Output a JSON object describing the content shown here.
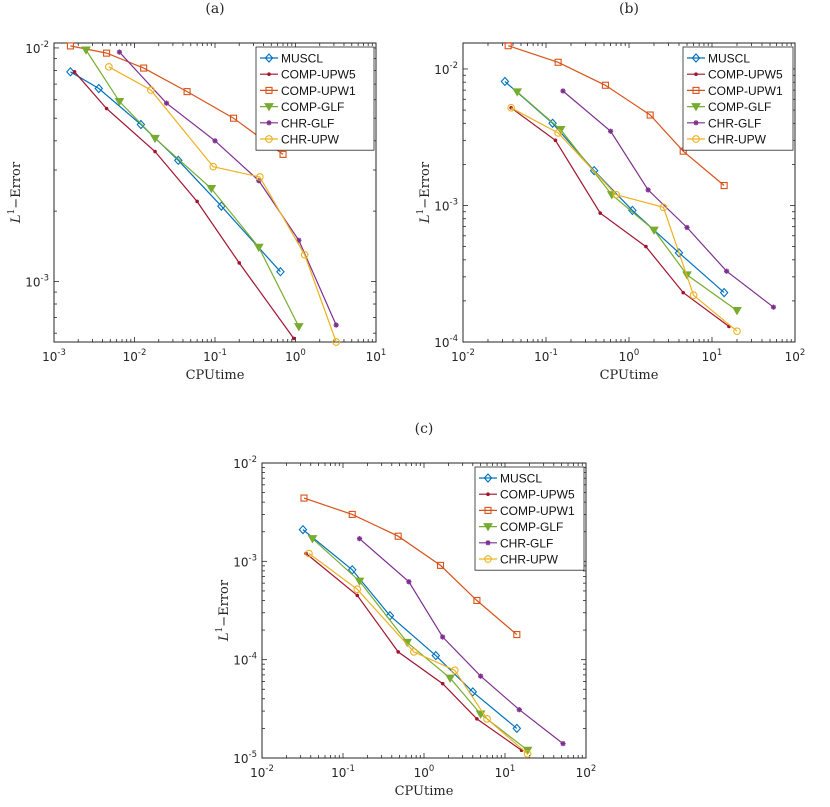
{
  "figure": {
    "xlabel": "CPUtime",
    "ylabel_base": "L",
    "ylabel_sup": "1",
    "ylabel_rest": "−Error"
  },
  "colors": {
    "MUSCL": "#0072BD",
    "COMP-UPW5": "#A2142F",
    "COMP-UPW1": "#D95319",
    "COMP-GLF": "#77AC30",
    "CHR-GLF": "#7E2F8E",
    "CHR-UPW": "#EDB120"
  },
  "chart_data": [
    {
      "type": "line",
      "panel": "(a)",
      "xscale": "log",
      "yscale": "log",
      "xlim": [
        0.001,
        10
      ],
      "ylim": [
        0.00055,
        0.0105
      ],
      "xticks": [
        {
          "v": 0.001,
          "e": "-3"
        },
        {
          "v": 0.01,
          "e": "-2"
        },
        {
          "v": 0.1,
          "e": "-1"
        },
        {
          "v": 1,
          "e": "0"
        },
        {
          "v": 10,
          "e": "1"
        }
      ],
      "yticks": [
        {
          "v": 0.001,
          "e": "-3"
        },
        {
          "v": 0.01,
          "e": "-2"
        }
      ],
      "xlabel": "CPUtime",
      "legend_position": "top-right",
      "series": [
        {
          "name": "MUSCL",
          "marker": "diamond",
          "x": [
            0.0016,
            0.0036,
            0.012,
            0.035,
            0.12,
            0.65
          ],
          "y": [
            0.0079,
            0.0067,
            0.0047,
            0.0033,
            0.0021,
            0.0011
          ]
        },
        {
          "name": "COMP-UPW5",
          "marker": "dot",
          "x": [
            0.0018,
            0.0045,
            0.018,
            0.06,
            0.2,
            0.95
          ],
          "y": [
            0.0079,
            0.0055,
            0.0036,
            0.0022,
            0.0012,
            0.00057
          ]
        },
        {
          "name": "COMP-UPW1",
          "marker": "square",
          "x": [
            0.0016,
            0.0045,
            0.013,
            0.045,
            0.17,
            0.7
          ],
          "y": [
            0.0102,
            0.0095,
            0.0082,
            0.0065,
            0.005,
            0.0035
          ]
        },
        {
          "name": "COMP-GLF",
          "marker": "triangle",
          "x": [
            0.0025,
            0.0065,
            0.018,
            0.09,
            0.35,
            1.1
          ],
          "y": [
            0.0098,
            0.0059,
            0.0041,
            0.0025,
            0.0014,
            0.00064
          ]
        },
        {
          "name": "CHR-GLF",
          "marker": "star",
          "x": [
            0.0065,
            0.025,
            0.1,
            0.35,
            1.1,
            3.2
          ],
          "y": [
            0.0096,
            0.0058,
            0.004,
            0.0027,
            0.0015,
            0.00065
          ]
        },
        {
          "name": "CHR-UPW",
          "marker": "circle",
          "x": [
            0.0048,
            0.016,
            0.095,
            0.36,
            1.3,
            3.2
          ],
          "y": [
            0.0083,
            0.0066,
            0.0031,
            0.0028,
            0.0013,
            0.00055
          ]
        }
      ]
    },
    {
      "type": "line",
      "panel": "(b)",
      "xscale": "log",
      "yscale": "log",
      "xlim": [
        0.01,
        100
      ],
      "ylim": [
        0.0001,
        0.0155
      ],
      "xticks": [
        {
          "v": 0.01,
          "e": "-2"
        },
        {
          "v": 0.1,
          "e": "-1"
        },
        {
          "v": 1,
          "e": "0"
        },
        {
          "v": 10,
          "e": "1"
        },
        {
          "v": 100,
          "e": "2"
        }
      ],
      "yticks": [
        {
          "v": 0.0001,
          "e": "-4"
        },
        {
          "v": 0.001,
          "e": "-3"
        },
        {
          "v": 0.01,
          "e": "-2"
        }
      ],
      "xlabel": "CPUtime",
      "legend_position": "top-right",
      "series": [
        {
          "name": "MUSCL",
          "marker": "diamond",
          "x": [
            0.032,
            0.12,
            0.38,
            1.1,
            4.0,
            14.0
          ],
          "y": [
            0.0081,
            0.004,
            0.0018,
            0.00092,
            0.00045,
            0.00023
          ]
        },
        {
          "name": "COMP-UPW5",
          "marker": "dot",
          "x": [
            0.038,
            0.13,
            0.45,
            1.6,
            4.5,
            16.0
          ],
          "y": [
            0.0052,
            0.003,
            0.00088,
            0.0005,
            0.00023,
            0.00013
          ]
        },
        {
          "name": "COMP-UPW1",
          "marker": "square",
          "x": [
            0.035,
            0.14,
            0.52,
            1.8,
            4.5,
            14.0
          ],
          "y": [
            0.0148,
            0.0112,
            0.0076,
            0.0046,
            0.0025,
            0.0014
          ]
        },
        {
          "name": "COMP-GLF",
          "marker": "triangle",
          "x": [
            0.045,
            0.15,
            0.62,
            2.0,
            5.0,
            20.0
          ],
          "y": [
            0.0068,
            0.0036,
            0.0012,
            0.00066,
            0.00031,
            0.00017
          ]
        },
        {
          "name": "CHR-GLF",
          "marker": "star",
          "x": [
            0.16,
            0.6,
            1.7,
            5.0,
            15.0,
            55.0
          ],
          "y": [
            0.0069,
            0.0035,
            0.0013,
            0.00069,
            0.00033,
            0.00018
          ]
        },
        {
          "name": "CHR-UPW",
          "marker": "circle",
          "x": [
            0.038,
            0.14,
            0.7,
            2.6,
            6.0,
            20.0
          ],
          "y": [
            0.0052,
            0.0034,
            0.0012,
            0.00097,
            0.00022,
            0.00012
          ]
        }
      ]
    },
    {
      "type": "line",
      "panel": "(c)",
      "xscale": "log",
      "yscale": "log",
      "xlim": [
        0.01,
        100
      ],
      "ylim": [
        1e-05,
        0.01
      ],
      "xticks": [
        {
          "v": 0.01,
          "e": "-2"
        },
        {
          "v": 0.1,
          "e": "-1"
        },
        {
          "v": 1,
          "e": "0"
        },
        {
          "v": 10,
          "e": "1"
        },
        {
          "v": 100,
          "e": "2"
        }
      ],
      "yticks": [
        {
          "v": 1e-05,
          "e": "-5"
        },
        {
          "v": 0.0001,
          "e": "-4"
        },
        {
          "v": 0.001,
          "e": "-3"
        },
        {
          "v": 0.01,
          "e": "-2"
        }
      ],
      "xlabel": "CPUtime",
      "legend_position": "top-right",
      "series": [
        {
          "name": "MUSCL",
          "marker": "diamond",
          "x": [
            0.032,
            0.13,
            0.38,
            1.4,
            4.0,
            14.0
          ],
          "y": [
            0.0021,
            0.00082,
            0.00028,
            0.00011,
            4.7e-05,
            2e-05
          ]
        },
        {
          "name": "COMP-UPW5",
          "marker": "dot",
          "x": [
            0.035,
            0.15,
            0.48,
            1.7,
            4.5,
            16.0
          ],
          "y": [
            0.0012,
            0.00045,
            0.00012,
            5.7e-05,
            2.5e-05,
            1.2e-05
          ]
        },
        {
          "name": "COMP-UPW1",
          "marker": "square",
          "x": [
            0.033,
            0.13,
            0.48,
            1.6,
            4.5,
            14.0
          ],
          "y": [
            0.0044,
            0.003,
            0.0018,
            0.00091,
            0.0004,
            0.00018
          ]
        },
        {
          "name": "COMP-GLF",
          "marker": "triangle",
          "x": [
            0.042,
            0.16,
            0.62,
            2.1,
            5.0,
            19.0
          ],
          "y": [
            0.0017,
            0.00063,
            0.00015,
            6.5e-05,
            2.8e-05,
            1.2e-05
          ]
        },
        {
          "name": "CHR-GLF",
          "marker": "star",
          "x": [
            0.16,
            0.65,
            1.7,
            5.0,
            15.0,
            52.0
          ],
          "y": [
            0.0017,
            0.00062,
            0.00017,
            6.8e-05,
            3.1e-05,
            1.4e-05
          ]
        },
        {
          "name": "CHR-UPW",
          "marker": "circle",
          "x": [
            0.038,
            0.15,
            0.75,
            2.4,
            6.0,
            19.0
          ],
          "y": [
            0.0012,
            0.00052,
            0.00012,
            7.8e-05,
            2.5e-05,
            1.1e-05
          ]
        }
      ]
    }
  ]
}
